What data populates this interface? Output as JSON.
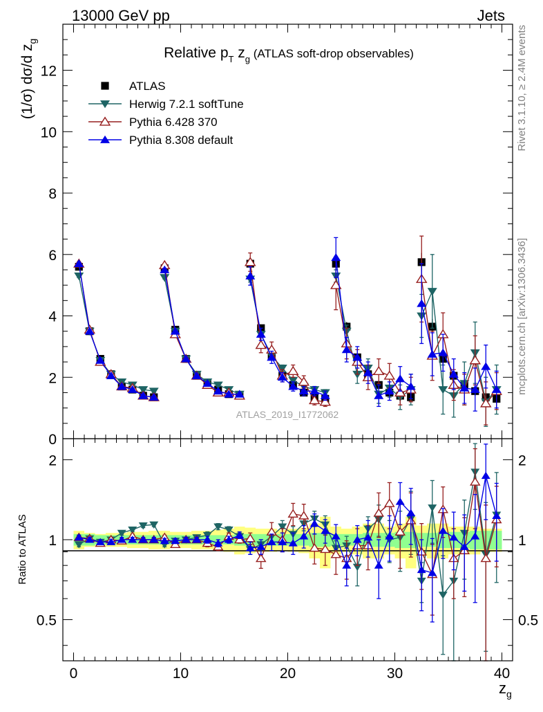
{
  "header": {
    "left": "13000 GeV pp",
    "right": "Jets"
  },
  "side_text": {
    "rivet": "Rivet 3.1.10, ≥ 2.4M events",
    "mcplots": "mcplots.cern.ch [arXiv:1306.3436]"
  },
  "colors": {
    "atlas": "#000000",
    "herwig": "#1e6464",
    "pythia6": "#961e1e",
    "pythia8": "#0000e6",
    "band_inner": "#90ff90",
    "band_outer": "#ffff80",
    "watermark": "#a0a0a0"
  },
  "chart_data": [
    {
      "type": "scatter",
      "title": "Relative p_T z_g (ATLAS soft-drop observables)",
      "title_parts": {
        "main": "Relative p",
        "sub_T": "T",
        "mid": " z",
        "sub_g": "g",
        "tail": " (ATLAS soft-drop observables)"
      },
      "ylabel": "(1/σ) dσ/d z_g",
      "ylabel_parts": {
        "main": "(1/σ) dσ/d z",
        "sub": "g"
      },
      "xlim": [
        -1,
        41
      ],
      "ylim": [
        0,
        13.5
      ],
      "yticks": [
        "0",
        "2",
        "4",
        "6",
        "8",
        "10",
        "12"
      ],
      "watermark": "ATLAS_2019_I1772062",
      "legend_position": "top-left",
      "x": [
        0.5,
        1.5,
        2.5,
        3.5,
        4.5,
        5.5,
        6.5,
        7.5,
        8.5,
        9.5,
        10.5,
        11.5,
        12.5,
        13.5,
        14.5,
        15.5,
        16.5,
        17.5,
        18.5,
        19.5,
        20.5,
        21.5,
        22.5,
        23.5,
        24.5,
        25.5,
        26.5,
        27.5,
        28.5,
        29.5,
        30.5,
        31.5,
        32.5,
        33.5,
        34.5,
        35.5,
        36.5,
        37.5,
        38.5,
        39.5
      ],
      "series": [
        {
          "name": "ATLAS",
          "marker": "square",
          "values": [
            5.6,
            3.5,
            2.6,
            2.1,
            1.7,
            1.6,
            1.4,
            1.35,
            5.55,
            3.55,
            2.6,
            2.05,
            1.8,
            1.6,
            1.45,
            1.4,
            5.7,
            3.6,
            2.7,
            2.05,
            1.75,
            1.5,
            1.35,
            1.3,
            5.7,
            3.65,
            2.65,
            2.1,
            1.75,
            1.5,
            1.4,
            1.35,
            5.75,
            3.65,
            2.6,
            2.05,
            1.75,
            1.55,
            1.35,
            1.3
          ],
          "errors": [
            0.1,
            0.08,
            0.06,
            0.05,
            0.04,
            0.04,
            0.04,
            0.04,
            0.1,
            0.08,
            0.06,
            0.05,
            0.04,
            0.04,
            0.04,
            0.04,
            0.15,
            0.12,
            0.1,
            0.08,
            0.07,
            0.06,
            0.06,
            0.06,
            0.2,
            0.15,
            0.12,
            0.1,
            0.1,
            0.1,
            0.1,
            0.1,
            0.3,
            0.25,
            0.2,
            0.18,
            0.15,
            0.15,
            0.15,
            0.15
          ]
        },
        {
          "name": "Herwig 7.2.1 softTune",
          "marker": "triangle-down",
          "values": [
            5.3,
            3.5,
            2.55,
            2.1,
            1.85,
            1.75,
            1.6,
            1.55,
            5.25,
            3.5,
            2.6,
            2.1,
            1.85,
            1.75,
            1.6,
            1.45,
            5.2,
            3.4,
            2.7,
            2.3,
            1.9,
            1.7,
            1.6,
            1.5,
            5.3,
            3.5,
            2.1,
            2.3,
            1.45,
            1.65,
            1.35,
            1.6,
            4.0,
            4.8,
            1.6,
            1.4,
            1.8,
            2.8,
            1.2,
            1.6
          ],
          "errors": [
            0.05,
            0.05,
            0.05,
            0.05,
            0.05,
            0.05,
            0.05,
            0.05,
            0.05,
            0.05,
            0.05,
            0.05,
            0.05,
            0.05,
            0.05,
            0.05,
            0.1,
            0.1,
            0.1,
            0.1,
            0.1,
            0.1,
            0.1,
            0.1,
            0.2,
            0.2,
            0.3,
            0.3,
            0.3,
            0.3,
            0.4,
            0.5,
            0.7,
            1.2,
            0.8,
            0.7,
            0.7,
            1.0,
            0.8,
            0.8
          ]
        },
        {
          "name": "Pythia 6.428 370",
          "marker": "triangle-up-open",
          "values": [
            5.7,
            3.55,
            2.5,
            2.1,
            1.7,
            1.65,
            1.4,
            1.35,
            5.65,
            3.4,
            2.6,
            2.05,
            1.75,
            1.5,
            1.5,
            1.4,
            5.75,
            3.05,
            2.9,
            2.05,
            2.2,
            1.85,
            1.25,
            1.2,
            5.0,
            3.1,
            2.5,
            2.0,
            2.2,
            2.05,
            1.5,
            1.6,
            5.2,
            2.7,
            3.4,
            1.75,
            1.6,
            2.55,
            1.15,
            1.55
          ],
          "errors": [
            0.05,
            0.05,
            0.05,
            0.05,
            0.05,
            0.05,
            0.05,
            0.05,
            0.05,
            0.05,
            0.05,
            0.05,
            0.05,
            0.05,
            0.05,
            0.05,
            0.3,
            0.25,
            0.25,
            0.2,
            0.2,
            0.2,
            0.15,
            0.15,
            0.8,
            0.5,
            0.4,
            0.4,
            0.4,
            0.4,
            0.4,
            0.4,
            1.4,
            0.8,
            0.7,
            0.5,
            0.5,
            0.8,
            0.7,
            0.6
          ]
        },
        {
          "name": "Pythia 8.308 default",
          "marker": "triangle-up",
          "values": [
            5.7,
            3.5,
            2.55,
            2.05,
            1.7,
            1.6,
            1.4,
            1.35,
            5.5,
            3.5,
            2.6,
            2.05,
            1.8,
            1.55,
            1.45,
            1.45,
            5.3,
            3.4,
            2.65,
            2.0,
            1.7,
            1.55,
            1.55,
            1.4,
            5.9,
            2.9,
            2.65,
            2.15,
            1.4,
            1.55,
            1.95,
            1.7,
            4.4,
            2.75,
            2.8,
            2.1,
            1.65,
            1.6,
            2.35,
            1.6
          ],
          "errors": [
            0.05,
            0.05,
            0.05,
            0.05,
            0.05,
            0.05,
            0.05,
            0.05,
            0.05,
            0.05,
            0.05,
            0.05,
            0.05,
            0.05,
            0.05,
            0.05,
            0.3,
            0.2,
            0.2,
            0.15,
            0.15,
            0.15,
            0.15,
            0.15,
            0.65,
            0.4,
            0.35,
            0.35,
            0.35,
            0.3,
            0.4,
            0.4,
            1.3,
            0.7,
            0.6,
            0.5,
            0.5,
            0.7,
            0.7,
            0.6
          ]
        }
      ]
    },
    {
      "type": "scatter",
      "title": "",
      "ylabel": "Ratio to ATLAS",
      "xlabel": "z_g",
      "xlabel_parts": {
        "main": "z",
        "sub": "g"
      },
      "scale": "log",
      "xlim": [
        -1,
        41
      ],
      "ylim": [
        0.35,
        2.4
      ],
      "yticks": [
        "0.5",
        "1",
        "2"
      ],
      "xticks": [
        "0",
        "10",
        "20",
        "30",
        "40"
      ],
      "reference_line": 1,
      "band_inner": [
        0.05,
        0.05,
        0.04,
        0.04,
        0.04,
        0.04,
        0.04,
        0.04,
        0.04,
        0.04,
        0.04,
        0.04,
        0.04,
        0.04,
        0.04,
        0.05,
        0.05,
        0.05,
        0.05,
        0.05,
        0.05,
        0.05,
        0.06,
        0.06,
        0.05,
        0.05,
        0.05,
        0.06,
        0.06,
        0.06,
        0.07,
        0.07,
        0.06,
        0.06,
        0.07,
        0.07,
        0.07,
        0.08,
        0.08,
        0.08
      ],
      "band_outer": [
        0.08,
        0.06,
        0.05,
        0.06,
        0.06,
        0.07,
        0.07,
        0.08,
        0.08,
        0.07,
        0.07,
        0.08,
        0.08,
        0.09,
        0.1,
        0.12,
        0.11,
        0.1,
        0.1,
        0.09,
        0.1,
        0.11,
        0.15,
        0.22,
        0.12,
        0.1,
        0.12,
        0.15,
        0.15,
        0.12,
        0.15,
        0.22,
        0.13,
        0.15,
        0.15,
        0.12,
        0.12,
        0.12,
        0.1,
        0.1
      ],
      "series": [
        {
          "name": "Herwig 7.2.1 softTune",
          "marker": "triangle-down",
          "values": [
            0.96,
            1.01,
            0.98,
            1.0,
            1.06,
            1.09,
            1.13,
            1.14,
            0.96,
            0.99,
            1.0,
            1.02,
            1.04,
            1.12,
            1.09,
            1.03,
            0.92,
            0.96,
            1.03,
            1.12,
            1.05,
            1.15,
            1.2,
            1.14,
            0.93,
            0.95,
            0.79,
            1.1,
            1.19,
            1.0,
            1.02,
            1.2,
            0.7,
            1.32,
            0.62,
            0.7,
            1.06,
            1.8,
            0.88,
            1.24
          ],
          "errors": [
            0.02,
            0.02,
            0.02,
            0.02,
            0.02,
            0.02,
            0.02,
            0.02,
            0.02,
            0.02,
            0.02,
            0.02,
            0.03,
            0.03,
            0.03,
            0.03,
            0.04,
            0.04,
            0.05,
            0.06,
            0.07,
            0.07,
            0.08,
            0.09,
            0.06,
            0.08,
            0.12,
            0.12,
            0.16,
            0.18,
            0.26,
            0.32,
            0.12,
            0.35,
            0.25,
            0.4,
            0.35,
            0.5,
            0.5,
            0.55
          ]
        },
        {
          "name": "Pythia 6.428 370",
          "marker": "triangle-up-open",
          "values": [
            1.02,
            1.01,
            0.97,
            1.0,
            0.99,
            1.03,
            1.0,
            1.0,
            1.02,
            0.96,
            1.0,
            1.0,
            0.97,
            0.94,
            1.03,
            1.0,
            1.01,
            0.85,
            1.07,
            1.0,
            1.25,
            1.23,
            0.93,
            0.92,
            0.88,
            0.85,
            0.95,
            0.95,
            1.26,
            1.37,
            1.07,
            1.18,
            0.9,
            0.74,
            1.3,
            0.85,
            0.91,
            1.65,
            0.85,
            1.19
          ],
          "errors": [
            0.02,
            0.02,
            0.02,
            0.02,
            0.02,
            0.02,
            0.02,
            0.02,
            0.02,
            0.02,
            0.02,
            0.02,
            0.03,
            0.03,
            0.03,
            0.03,
            0.05,
            0.07,
            0.09,
            0.1,
            0.12,
            0.13,
            0.12,
            0.12,
            0.14,
            0.14,
            0.15,
            0.18,
            0.24,
            0.27,
            0.29,
            0.32,
            0.25,
            0.22,
            0.28,
            0.25,
            0.3,
            0.55,
            0.5,
            0.4
          ]
        },
        {
          "name": "Pythia 8.308 default",
          "marker": "triangle-up",
          "values": [
            1.02,
            1.0,
            0.98,
            0.98,
            1.0,
            1.0,
            1.0,
            1.0,
            0.99,
            0.99,
            1.0,
            1.0,
            1.0,
            0.97,
            1.0,
            1.04,
            0.93,
            0.94,
            0.98,
            0.98,
            0.97,
            1.03,
            1.15,
            1.08,
            1.03,
            0.8,
            1.0,
            1.02,
            0.8,
            1.03,
            1.39,
            1.26,
            0.77,
            0.75,
            1.08,
            1.02,
            0.94,
            1.03,
            1.74,
            1.23
          ],
          "errors": [
            0.02,
            0.02,
            0.02,
            0.02,
            0.02,
            0.02,
            0.02,
            0.02,
            0.02,
            0.02,
            0.02,
            0.02,
            0.03,
            0.03,
            0.03,
            0.03,
            0.05,
            0.06,
            0.07,
            0.08,
            0.09,
            0.1,
            0.1,
            0.11,
            0.11,
            0.13,
            0.13,
            0.16,
            0.2,
            0.2,
            0.25,
            0.3,
            0.23,
            0.26,
            0.23,
            0.25,
            0.3,
            0.45,
            0.55,
            0.4
          ]
        }
      ]
    }
  ]
}
